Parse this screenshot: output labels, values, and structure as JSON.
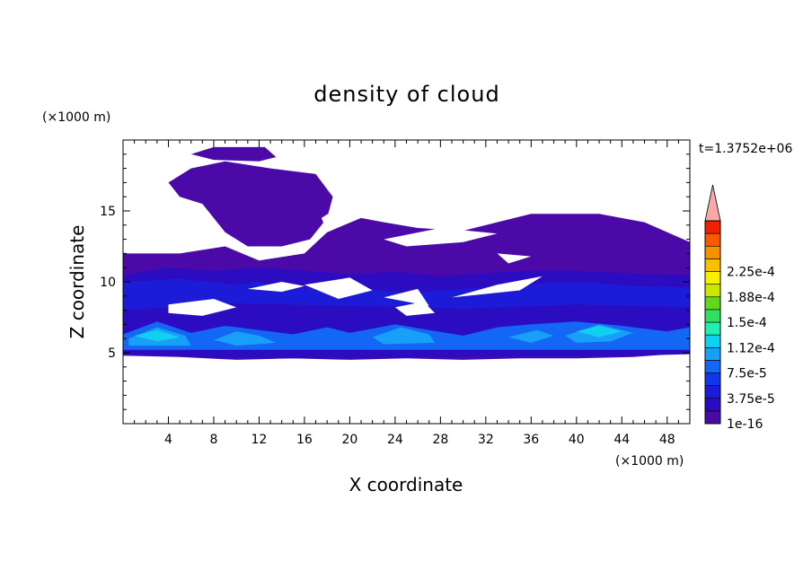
{
  "chart_data": {
    "type": "heatmap",
    "title": "density of cloud",
    "xlabel": "X coordinate",
    "ylabel": "Z coordinate",
    "x_unit": "(×1000 m)",
    "y_unit": "(×1000 m)",
    "time_label": "t=1.3752e+06",
    "xlim": [
      0,
      50
    ],
    "ylim": [
      0,
      20
    ],
    "x_ticks": [
      4,
      8,
      12,
      16,
      20,
      24,
      28,
      32,
      36,
      40,
      44,
      48
    ],
    "y_ticks": [
      5,
      10,
      15
    ],
    "colorbar": {
      "labels": [
        "1e-16",
        "3.75e-5",
        "7.5e-5",
        "1.12e-4",
        "1.5e-4",
        "1.88e-4",
        "2.25e-4"
      ],
      "colors": [
        "#4b0aa8",
        "#2c0cc0",
        "#1c1cd8",
        "#1038ea",
        "#1466f4",
        "#18a0f8",
        "#10d0f0",
        "#20f0b0",
        "#30e060",
        "#60d820",
        "#c8e800",
        "#f8f000",
        "#f8c000",
        "#f89000",
        "#f85a00",
        "#f02000",
        "#f8a8a8"
      ]
    },
    "regions": [
      {
        "level": 0,
        "polygon": [
          [
            0,
            12
          ],
          [
            5,
            12
          ],
          [
            9,
            12.5
          ],
          [
            12,
            11.5
          ],
          [
            16,
            12
          ],
          [
            18,
            13.5
          ],
          [
            21,
            14.5
          ],
          [
            23,
            14.2
          ],
          [
            26,
            13.8
          ],
          [
            30,
            13.6
          ],
          [
            33,
            14.2
          ],
          [
            36,
            14.8
          ],
          [
            42,
            14.8
          ],
          [
            46,
            14.2
          ],
          [
            50,
            12.8
          ],
          [
            50,
            5
          ],
          [
            45,
            4.7
          ],
          [
            40,
            4.6
          ],
          [
            35,
            4.6
          ],
          [
            30,
            4.5
          ],
          [
            25,
            4.6
          ],
          [
            20,
            4.5
          ],
          [
            15,
            4.6
          ],
          [
            10,
            4.5
          ],
          [
            5,
            4.7
          ],
          [
            0,
            4.8
          ]
        ]
      },
      {
        "level": 0,
        "polygon": [
          [
            4,
            17
          ],
          [
            6,
            18
          ],
          [
            9,
            18.5
          ],
          [
            13,
            18
          ],
          [
            15,
            17.8
          ],
          [
            17,
            17.6
          ],
          [
            18.5,
            16
          ],
          [
            18,
            14.5
          ],
          [
            16.5,
            13
          ],
          [
            14,
            12.5
          ],
          [
            11,
            12.5
          ],
          [
            9,
            13.5
          ],
          [
            7,
            15.5
          ],
          [
            5,
            16
          ]
        ]
      },
      {
        "level": 0,
        "polygon": [
          [
            6,
            19
          ],
          [
            8,
            19.5
          ],
          [
            12.5,
            19.5
          ],
          [
            13.5,
            18.8
          ],
          [
            12,
            18.5
          ],
          [
            8,
            18.6
          ]
        ]
      },
      {
        "level": 1,
        "polygon": [
          [
            0,
            10.5
          ],
          [
            4,
            11
          ],
          [
            8,
            10.8
          ],
          [
            12,
            11
          ],
          [
            16,
            10.8
          ],
          [
            20,
            10.5
          ],
          [
            24,
            10.7
          ],
          [
            28,
            10.4
          ],
          [
            32,
            10.6
          ],
          [
            36,
            10.8
          ],
          [
            40,
            10.8
          ],
          [
            44,
            10.6
          ],
          [
            48,
            10.5
          ],
          [
            50,
            10.5
          ],
          [
            50,
            7
          ],
          [
            0,
            7
          ]
        ]
      },
      {
        "level": 2,
        "polygon": [
          [
            0,
            10
          ],
          [
            5,
            10.2
          ],
          [
            10,
            9.8
          ],
          [
            12,
            10
          ],
          [
            14,
            9.5
          ],
          [
            20,
            9.6
          ],
          [
            25,
            9.2
          ],
          [
            30,
            9.5
          ],
          [
            35,
            9.8
          ],
          [
            40,
            10
          ],
          [
            45,
            9.7
          ],
          [
            50,
            9.6
          ],
          [
            50,
            7.5
          ],
          [
            0,
            7.5
          ]
        ]
      },
      {
        "level": 1,
        "polygon": [
          [
            0,
            8
          ],
          [
            10,
            8.5
          ],
          [
            20,
            8.3
          ],
          [
            30,
            8.1
          ],
          [
            40,
            8.4
          ],
          [
            50,
            8.2
          ],
          [
            50,
            4.9
          ],
          [
            40,
            4.7
          ],
          [
            30,
            4.7
          ],
          [
            20,
            4.6
          ],
          [
            10,
            4.6
          ],
          [
            0,
            4.9
          ]
        ]
      },
      {
        "level": 4,
        "polygon": [
          [
            0,
            6.3
          ],
          [
            3,
            7.2
          ],
          [
            6,
            6.4
          ],
          [
            9,
            6.9
          ],
          [
            12,
            6.6
          ],
          [
            15,
            6.3
          ],
          [
            18,
            6.8
          ],
          [
            20,
            6.4
          ],
          [
            24,
            7
          ],
          [
            27,
            6.6
          ],
          [
            30,
            6.2
          ],
          [
            33,
            6.8
          ],
          [
            36,
            7
          ],
          [
            40,
            7.2
          ],
          [
            44,
            6.9
          ],
          [
            48,
            6.5
          ],
          [
            50,
            6.8
          ],
          [
            50,
            5.2
          ],
          [
            0,
            5.2
          ]
        ]
      },
      {
        "level": 5,
        "polygon": [
          [
            0.5,
            6
          ],
          [
            3,
            6.8
          ],
          [
            5.5,
            6.2
          ],
          [
            6,
            5.5
          ],
          [
            0.5,
            5.5
          ]
        ]
      },
      {
        "level": 6,
        "polygon": [
          [
            1,
            6.2
          ],
          [
            3,
            6.6
          ],
          [
            5,
            6.1
          ],
          [
            3,
            5.8
          ]
        ]
      },
      {
        "level": 5,
        "polygon": [
          [
            8,
            5.9
          ],
          [
            10,
            6.5
          ],
          [
            12,
            6.2
          ],
          [
            13.5,
            5.7
          ],
          [
            10,
            5.5
          ]
        ]
      },
      {
        "level": 5,
        "polygon": [
          [
            22,
            6.1
          ],
          [
            24.5,
            6.8
          ],
          [
            27,
            6.3
          ],
          [
            27.5,
            5.7
          ],
          [
            23,
            5.6
          ]
        ]
      },
      {
        "level": 5,
        "polygon": [
          [
            34,
            6.1
          ],
          [
            36.5,
            6.6
          ],
          [
            38,
            6.2
          ],
          [
            36,
            5.7
          ]
        ]
      },
      {
        "level": 5,
        "polygon": [
          [
            39,
            6.2
          ],
          [
            42,
            7
          ],
          [
            45,
            6.4
          ],
          [
            43,
            5.8
          ],
          [
            40,
            5.7
          ]
        ]
      },
      {
        "level": 6,
        "polygon": [
          [
            40,
            6.5
          ],
          [
            42,
            6.9
          ],
          [
            44,
            6.5
          ],
          [
            42,
            6.1
          ]
        ]
      }
    ],
    "holes": [
      {
        "polygon": [
          [
            17.5,
            14.5
          ],
          [
            20,
            15.8
          ],
          [
            22,
            15.5
          ],
          [
            20,
            14.2
          ],
          [
            18,
            13.5
          ]
        ]
      },
      {
        "polygon": [
          [
            23,
            13
          ],
          [
            28,
            13.8
          ],
          [
            33,
            13.4
          ],
          [
            30,
            12.8
          ],
          [
            25,
            12.5
          ]
        ]
      },
      {
        "polygon": [
          [
            11,
            9.5
          ],
          [
            14,
            10
          ],
          [
            16,
            9.7
          ],
          [
            14,
            9.3
          ]
        ]
      },
      {
        "polygon": [
          [
            33,
            12
          ],
          [
            36,
            11.8
          ],
          [
            34,
            11.3
          ]
        ]
      },
      {
        "polygon": [
          [
            4,
            8.4
          ],
          [
            8,
            8.8
          ],
          [
            10,
            8.2
          ],
          [
            7,
            7.6
          ],
          [
            4,
            7.8
          ]
        ]
      },
      {
        "polygon": [
          [
            16,
            9.8
          ],
          [
            20,
            10.3
          ],
          [
            22,
            9.4
          ],
          [
            19,
            8.8
          ]
        ]
      },
      {
        "polygon": [
          [
            23,
            8.9
          ],
          [
            26,
            9.5
          ],
          [
            27,
            8.3
          ]
        ]
      },
      {
        "polygon": [
          [
            29,
            8.9
          ],
          [
            33,
            9.8
          ],
          [
            37,
            10.4
          ],
          [
            35,
            9.4
          ]
        ]
      },
      {
        "polygon": [
          [
            24,
            8.2
          ],
          [
            26.5,
            8.6
          ],
          [
            27.5,
            7.8
          ],
          [
            25,
            7.6
          ]
        ]
      }
    ]
  }
}
